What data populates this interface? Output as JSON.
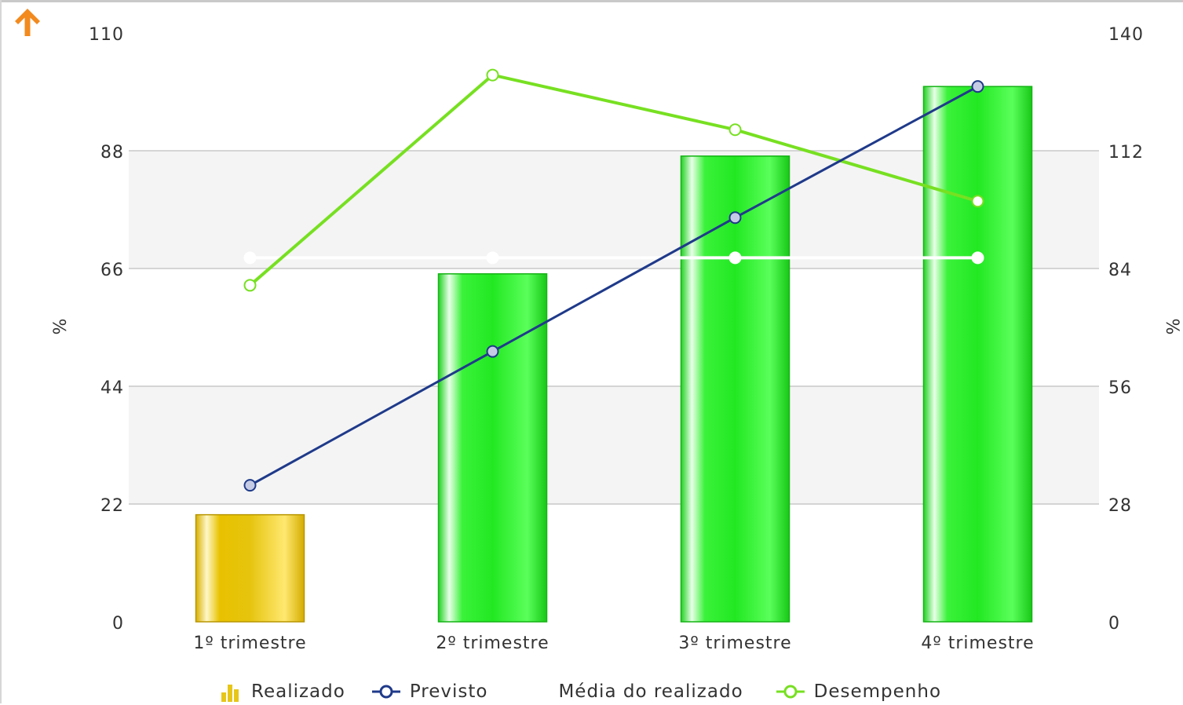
{
  "chart_data": {
    "type": "bar",
    "categories": [
      "1º trimestre",
      "2º trimestre",
      "3º trimestre",
      "4º trimestre"
    ],
    "y_left": {
      "label": "%",
      "ticks": [
        "0",
        "22",
        "44",
        "66",
        "88",
        "110"
      ],
      "range": [
        0,
        110
      ]
    },
    "y_right": {
      "label": "%",
      "ticks": [
        "0",
        "28",
        "56",
        "84",
        "112",
        "140"
      ],
      "range": [
        0,
        140
      ]
    },
    "series": [
      {
        "name": "Realizado",
        "type": "bar",
        "axis": "left",
        "values": [
          20,
          65,
          87,
          100
        ],
        "colors": [
          "#e6c619",
          "#2ee62e",
          "#2ee62e",
          "#2ee62e"
        ]
      },
      {
        "name": "Previsto",
        "type": "line",
        "axis": "left",
        "values": [
          25.5,
          50.5,
          75.5,
          100
        ],
        "color": "#1f3a8a"
      },
      {
        "name": "Média do realizado",
        "type": "line",
        "axis": "left",
        "values": [
          68,
          68,
          68,
          68
        ],
        "color": "#ffffff"
      },
      {
        "name": "Desempenho",
        "type": "line",
        "axis": "right",
        "values": [
          80,
          130,
          117,
          100
        ],
        "color": "#77e021"
      }
    ],
    "grid": true,
    "legend_position": "bottom"
  },
  "icons": {
    "back": "arrow-up-icon"
  },
  "colors": {
    "accent": "#f28a1e",
    "band": "#f4f4f4",
    "grid": "#c8c8c8"
  }
}
